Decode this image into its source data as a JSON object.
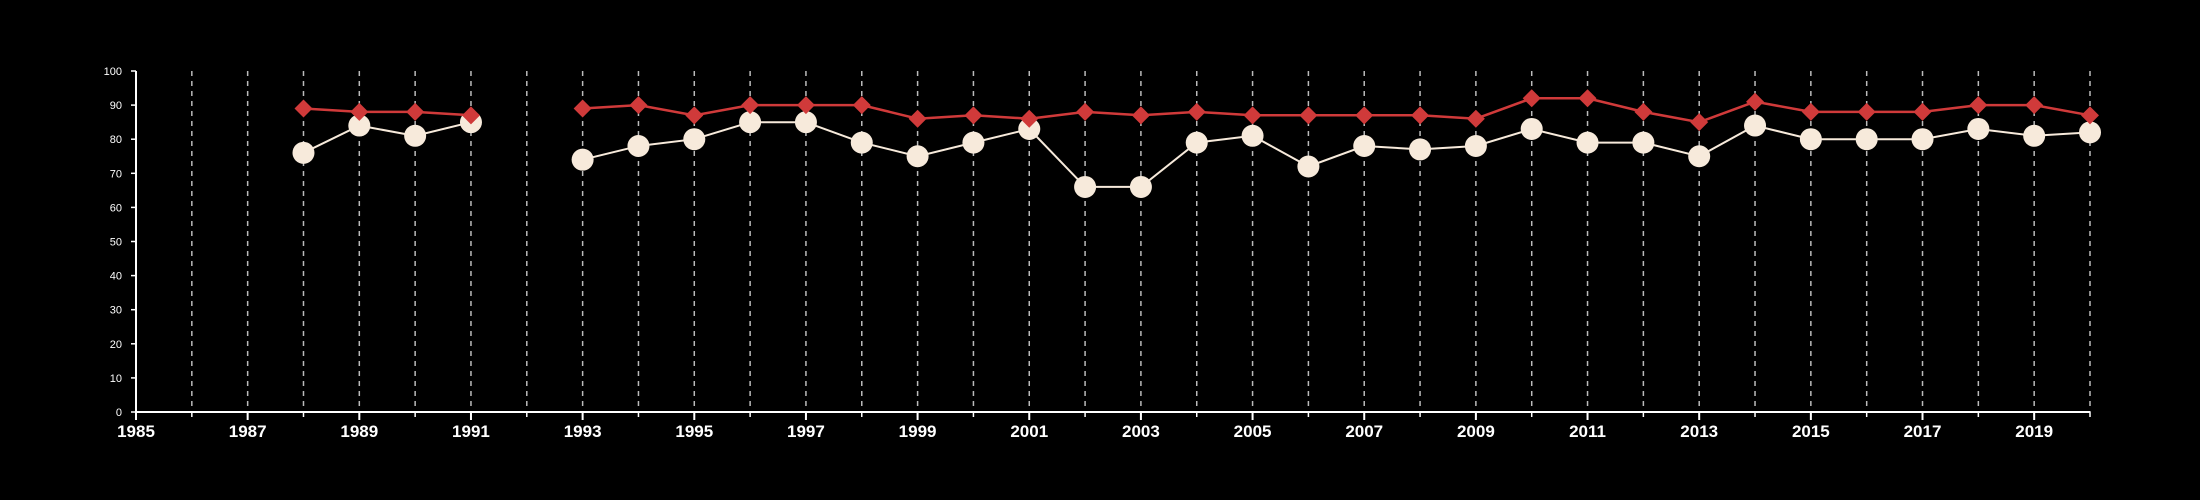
{
  "chart_data": {
    "type": "line",
    "title": "",
    "xlabel": "",
    "ylabel": "",
    "xlim": [
      1985,
      2020
    ],
    "ylim": [
      0,
      100
    ],
    "x_ticks": [
      {
        "value": 1985,
        "label": "1985"
      },
      {
        "value": 1987,
        "label": "1987"
      },
      {
        "value": 1989,
        "label": "1989"
      },
      {
        "value": 1991,
        "label": "1991"
      },
      {
        "value": 1993,
        "label": "1993"
      },
      {
        "value": 1995,
        "label": "1995"
      },
      {
        "value": 1997,
        "label": "1997"
      },
      {
        "value": 1999,
        "label": "1999"
      },
      {
        "value": 2001,
        "label": "2001"
      },
      {
        "value": 2003,
        "label": "2003"
      },
      {
        "value": 2005,
        "label": "2005"
      },
      {
        "value": 2007,
        "label": "2007"
      },
      {
        "value": 2009,
        "label": "2009"
      },
      {
        "value": 2011,
        "label": "2011"
      },
      {
        "value": 2013,
        "label": "2013"
      },
      {
        "value": 2015,
        "label": "2015"
      },
      {
        "value": 2017,
        "label": "2017"
      },
      {
        "value": 2019,
        "label": "2019"
      }
    ],
    "y_ticks": [
      {
        "value": 0,
        "label": "0"
      },
      {
        "value": 10,
        "label": "10"
      },
      {
        "value": 20,
        "label": "20"
      },
      {
        "value": 30,
        "label": "30"
      },
      {
        "value": 40,
        "label": "40"
      },
      {
        "value": 50,
        "label": "50"
      },
      {
        "value": 60,
        "label": "60"
      },
      {
        "value": 70,
        "label": "70"
      },
      {
        "value": 80,
        "label": "80"
      },
      {
        "value": 90,
        "label": "90"
      },
      {
        "value": 100,
        "label": "100"
      }
    ],
    "grid": "vertical-dashed",
    "legend": "none",
    "colors": {
      "background": "#000000",
      "axis": "#ffffff",
      "grid": "#bbbbbb",
      "series_red": "#d03a3a",
      "series_cream": "#f7eadb"
    },
    "series": [
      {
        "marker": "diamond",
        "color": "#d03a3a",
        "points": [
          [
            1988,
            89
          ],
          [
            1989,
            88
          ],
          [
            1990,
            88
          ],
          [
            1991,
            87
          ],
          [
            1992,
            null
          ],
          [
            1993,
            89
          ],
          [
            1994,
            90
          ],
          [
            1995,
            87
          ],
          [
            1996,
            90
          ],
          [
            1997,
            90
          ],
          [
            1998,
            90
          ],
          [
            1999,
            86
          ],
          [
            2000,
            87
          ],
          [
            2001,
            86
          ],
          [
            2002,
            88
          ],
          [
            2003,
            87
          ],
          [
            2004,
            88
          ],
          [
            2005,
            87
          ],
          [
            2006,
            87
          ],
          [
            2007,
            87
          ],
          [
            2008,
            87
          ],
          [
            2009,
            86
          ],
          [
            2010,
            92
          ],
          [
            2011,
            92
          ],
          [
            2012,
            88
          ],
          [
            2013,
            85
          ],
          [
            2014,
            91
          ],
          [
            2015,
            88
          ],
          [
            2016,
            88
          ],
          [
            2017,
            88
          ],
          [
            2018,
            90
          ],
          [
            2019,
            90
          ],
          [
            2020,
            87
          ]
        ]
      },
      {
        "marker": "circle",
        "color": "#f7eadb",
        "points": [
          [
            1988,
            76
          ],
          [
            1989,
            84
          ],
          [
            1990,
            81
          ],
          [
            1991,
            85
          ],
          [
            1992,
            null
          ],
          [
            1993,
            74
          ],
          [
            1994,
            78
          ],
          [
            1995,
            80
          ],
          [
            1996,
            85
          ],
          [
            1997,
            85
          ],
          [
            1998,
            79
          ],
          [
            1999,
            75
          ],
          [
            2000,
            79
          ],
          [
            2001,
            83
          ],
          [
            2002,
            66
          ],
          [
            2003,
            66
          ],
          [
            2004,
            79
          ],
          [
            2005,
            81
          ],
          [
            2006,
            72
          ],
          [
            2007,
            78
          ],
          [
            2008,
            77
          ],
          [
            2009,
            78
          ],
          [
            2010,
            83
          ],
          [
            2011,
            79
          ],
          [
            2012,
            79
          ],
          [
            2013,
            75
          ],
          [
            2014,
            84
          ],
          [
            2015,
            80
          ],
          [
            2016,
            80
          ],
          [
            2017,
            80
          ],
          [
            2018,
            83
          ],
          [
            2019,
            81
          ],
          [
            2020,
            82
          ]
        ]
      }
    ]
  }
}
